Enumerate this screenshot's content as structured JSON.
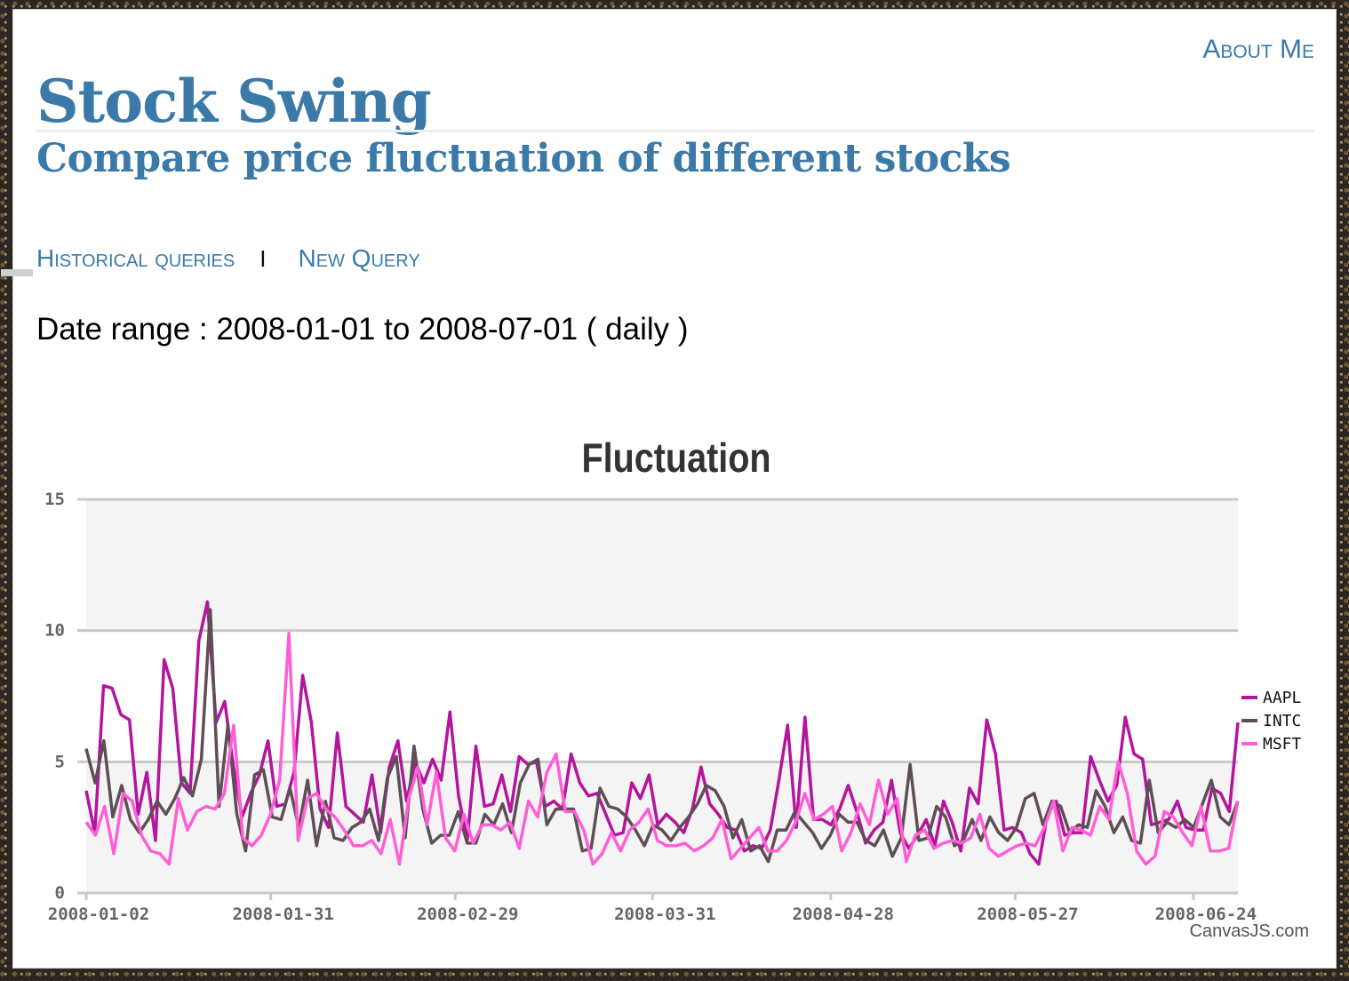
{
  "header": {
    "about_label": "About Me",
    "site_title": "Stock Swing",
    "subtitle": "Compare price fluctuation of different stocks"
  },
  "nav": {
    "historical_label": "Historical queries",
    "separator": "I",
    "new_query_label": "New Query"
  },
  "date_range": {
    "label": "Date range : 2008-01-01 to 2008-07-01 ( daily )"
  },
  "credit": "CanvasJS.com",
  "colors": {
    "accent": "#3b7aa8",
    "aapl": "#b4159d",
    "intc": "#5f4e56",
    "msft": "#ff5fd6",
    "band": "#f4f4f4",
    "grid": "#c9c9c9"
  },
  "chart_data": {
    "type": "line",
    "title": "Fluctuation",
    "xlabel": "",
    "ylabel": "",
    "ylim": [
      0,
      15
    ],
    "yticks": [
      0,
      5,
      10,
      15
    ],
    "x_start": "2008-01-02",
    "x_end": "2008-07-01",
    "xticks": [
      "2008-01-02",
      "2008-01-31",
      "2008-02-29",
      "2008-03-31",
      "2008-04-28",
      "2008-05-27",
      "2008-06-24"
    ],
    "grid": true,
    "legend_position": "right",
    "series": [
      {
        "name": "AAPL",
        "color": "#b4159d",
        "values": [
          3.9,
          2.3,
          7.9,
          7.8,
          6.8,
          6.6,
          3.0,
          4.6,
          2.0,
          8.9,
          7.8,
          4.2,
          3.8,
          9.6,
          11.1,
          6.5,
          7.3,
          4.8,
          2.9,
          3.8,
          4.5,
          5.8,
          3.3,
          3.4,
          4.6,
          8.3,
          6.5,
          3.2,
          2.5,
          6.1,
          3.3,
          3.0,
          2.7,
          4.5,
          2.3,
          4.8,
          5.8,
          3.5,
          5.0,
          4.2,
          5.1,
          4.3,
          6.9,
          3.7,
          2.0,
          5.6,
          3.3,
          3.4,
          4.5,
          3.1,
          5.2,
          4.9,
          5.0,
          3.3,
          3.5,
          3.2,
          5.3,
          4.2,
          3.7,
          3.8,
          3.0,
          2.2,
          2.3,
          4.2,
          3.6,
          4.5,
          2.6,
          3.0,
          2.7,
          2.3,
          3.2,
          4.8,
          3.4,
          3.0,
          2.5,
          2.4,
          1.6,
          1.8,
          1.7,
          2.4,
          4.3,
          6.4,
          2.5,
          6.7,
          2.8,
          2.8,
          2.6,
          3.2,
          4.1,
          3.1,
          1.9,
          2.4,
          2.7,
          4.3,
          2.3,
          1.7,
          2.2,
          2.8,
          1.8,
          3.5,
          2.7,
          1.6,
          4.0,
          3.4,
          6.6,
          5.3,
          2.4,
          2.5,
          2.3,
          1.5,
          1.1,
          3.0,
          3.5,
          2.2,
          2.3,
          2.3,
          5.2,
          4.3,
          3.5,
          4.1,
          6.7,
          5.3,
          5.1,
          2.6,
          2.7,
          2.8,
          3.5,
          2.5,
          2.4,
          2.4,
          4.0,
          3.8,
          3.1,
          6.5
        ]
      },
      {
        "name": "INTC",
        "color": "#5f4e56",
        "values": [
          5.5,
          4.2,
          5.8,
          2.9,
          4.1,
          2.8,
          2.3,
          2.8,
          3.5,
          3.0,
          3.6,
          4.4,
          3.7,
          5.1,
          10.8,
          3.3,
          6.4,
          3.0,
          1.6,
          4.5,
          4.7,
          2.9,
          2.8,
          4.0,
          2.5,
          4.3,
          1.8,
          3.5,
          2.1,
          2.0,
          2.5,
          2.7,
          3.2,
          2.0,
          4.4,
          5.2,
          2.1,
          5.6,
          3.2,
          1.9,
          2.2,
          2.2,
          3.1,
          1.9,
          1.9,
          3.0,
          2.6,
          3.4,
          2.3,
          4.2,
          4.9,
          5.1,
          2.6,
          3.2,
          3.2,
          3.2,
          1.6,
          1.7,
          4.0,
          3.3,
          3.2,
          2.9,
          2.4,
          1.8,
          2.6,
          2.4,
          2.0,
          2.5,
          2.9,
          3.4,
          4.1,
          3.9,
          3.3,
          2.1,
          2.8,
          1.6,
          1.8,
          1.2,
          2.4,
          2.4,
          3.1,
          2.7,
          2.3,
          1.7,
          2.2,
          3.0,
          2.7,
          2.7,
          2.0,
          1.8,
          2.4,
          1.4,
          2.1,
          4.9,
          2.0,
          2.1,
          3.3,
          2.9,
          1.8,
          2.0,
          2.8,
          2.0,
          2.9,
          2.3,
          2.0,
          2.5,
          3.6,
          3.8,
          2.6,
          3.5,
          3.3,
          2.3,
          2.6,
          2.5,
          3.9,
          3.3,
          2.3,
          2.9,
          2.0,
          1.9,
          4.3,
          2.3,
          2.7,
          2.5,
          2.8,
          2.5,
          3.4,
          4.3,
          2.9,
          2.6,
          3.5
        ]
      },
      {
        "name": "MSFT",
        "color": "#ff5fd6",
        "values": [
          2.7,
          2.2,
          3.3,
          1.5,
          3.8,
          3.5,
          2.2,
          1.6,
          1.5,
          1.1,
          3.6,
          2.4,
          3.1,
          3.3,
          3.2,
          3.8,
          6.4,
          2.1,
          1.8,
          2.2,
          3.0,
          4.3,
          9.9,
          2.0,
          3.6,
          3.8,
          3.2,
          2.9,
          2.4,
          1.8,
          1.8,
          2.0,
          1.5,
          2.8,
          1.1,
          3.6,
          4.8,
          2.6,
          4.6,
          2.1,
          1.6,
          3.0,
          1.9,
          2.6,
          2.6,
          2.4,
          2.7,
          1.7,
          3.5,
          2.9,
          4.6,
          5.3,
          3.1,
          3.1,
          2.4,
          1.1,
          1.5,
          2.3,
          1.6,
          2.4,
          2.7,
          3.2,
          2.0,
          1.8,
          1.8,
          1.9,
          1.6,
          1.8,
          2.1,
          2.8,
          1.3,
          1.7,
          2.1,
          2.5,
          1.6,
          1.6,
          2.0,
          2.7,
          3.8,
          2.8,
          3.0,
          3.3,
          1.6,
          2.3,
          3.4,
          2.6,
          4.3,
          3.0,
          3.6,
          1.2,
          2.2,
          2.4,
          1.7,
          1.9,
          2.0,
          1.9,
          2.1,
          3.0,
          1.7,
          1.4,
          1.6,
          1.8,
          1.9,
          1.8,
          2.5,
          3.5,
          1.6,
          2.5,
          2.4,
          2.2,
          3.3,
          2.8,
          5.0,
          3.8,
          1.6,
          1.1,
          1.4,
          3.1,
          2.9,
          2.3,
          1.8,
          3.3,
          1.6,
          1.6,
          1.7,
          3.5
        ]
      }
    ]
  }
}
